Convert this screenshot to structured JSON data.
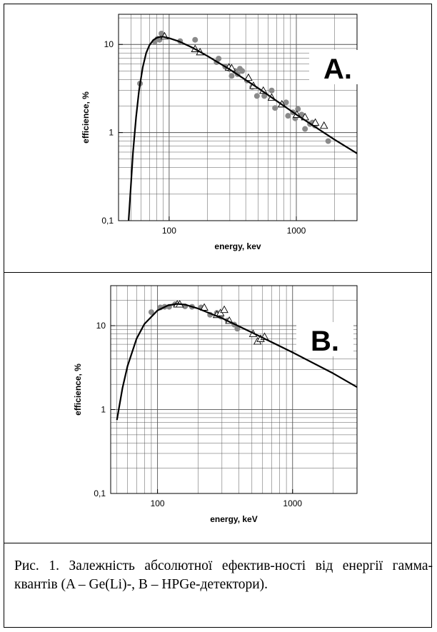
{
  "chart_data": [
    {
      "type": "scatter",
      "title": "",
      "panel_label": "A.",
      "xlabel": "energy, kev",
      "ylabel": "efficience, %",
      "x_scale": "log",
      "y_scale": "log",
      "xlim": [
        40,
        3000
      ],
      "ylim": [
        0.1,
        22
      ],
      "x_tick_labels": [
        {
          "value": 100,
          "label": "100"
        },
        {
          "value": 1000,
          "label": "1000"
        }
      ],
      "y_tick_labels": [
        {
          "value": 0.1,
          "label": "0,1"
        },
        {
          "value": 1,
          "label": "1"
        },
        {
          "value": 10,
          "label": "10"
        }
      ],
      "grid": true,
      "fit_curve": {
        "x": [
          48,
          50,
          52,
          55,
          58,
          62,
          66,
          70,
          75,
          80,
          85,
          90,
          100,
          120,
          150,
          200,
          300,
          500,
          1000,
          2000,
          3000
        ],
        "y": [
          0.1,
          0.25,
          0.6,
          1.5,
          3.0,
          5.5,
          8.0,
          9.8,
          11.2,
          11.9,
          12.2,
          12.2,
          11.8,
          10.8,
          9.3,
          7.4,
          5.2,
          3.2,
          1.6,
          0.83,
          0.58
        ]
      },
      "series": [
        {
          "marker": "circle",
          "color": "#8a8a8a",
          "x": [
            59,
            77,
            81,
            84,
            87,
            90,
            122,
            160,
            236,
            245,
            276,
            295,
            310,
            330,
            345,
            360,
            375,
            410,
            450,
            490,
            560,
            640,
            680,
            780,
            830,
            860,
            940,
            980,
            1030,
            1100,
            1170,
            1280,
            1340,
            1400,
            1780
          ],
          "y": [
            3.6,
            10.8,
            11.6,
            11.3,
            13.3,
            12.3,
            10.9,
            11.3,
            6.3,
            6.9,
            5.6,
            5.4,
            4.4,
            5.0,
            4.6,
            5.3,
            5.0,
            3.9,
            3.3,
            2.6,
            2.6,
            3.0,
            1.9,
            2.1,
            2.2,
            1.55,
            1.7,
            1.45,
            1.85,
            1.6,
            1.1,
            1.25,
            1.3,
            1.2,
            0.8
          ]
        },
        {
          "marker": "triangle",
          "color": "#ffffff",
          "x": [
            92,
            160,
            175,
            295,
            310,
            420,
            460,
            550,
            640,
            770,
            1010,
            1170,
            1410,
            1650
          ],
          "y": [
            12.4,
            8.9,
            8.2,
            5.5,
            5.4,
            4.2,
            3.4,
            3.0,
            2.5,
            2.1,
            1.6,
            1.5,
            1.3,
            1.2
          ]
        }
      ]
    },
    {
      "type": "scatter",
      "title": "",
      "panel_label": "B.",
      "xlabel": "energy, keV",
      "ylabel": "efficience, %",
      "x_scale": "log",
      "y_scale": "log",
      "xlim": [
        45,
        3000
      ],
      "ylim": [
        0.1,
        30
      ],
      "x_tick_labels": [
        {
          "value": 100,
          "label": "100"
        },
        {
          "value": 1000,
          "label": "1000"
        }
      ],
      "y_tick_labels": [
        {
          "value": 0.1,
          "label": "0,1"
        },
        {
          "value": 1,
          "label": "1"
        },
        {
          "value": 10,
          "label": "10"
        }
      ],
      "grid": true,
      "fit_curve": {
        "x": [
          50,
          55,
          60,
          70,
          80,
          100,
          120,
          140,
          160,
          200,
          300,
          500,
          1000,
          2000,
          3000
        ],
        "y": [
          0.75,
          1.8,
          3.3,
          7.0,
          10.5,
          15.2,
          17.5,
          18.2,
          17.8,
          16.0,
          12.3,
          8.3,
          4.8,
          2.7,
          1.85
        ]
      },
      "series": [
        {
          "marker": "circle",
          "color": "#8a8a8a",
          "x": [
            90,
            105,
            113,
            122,
            135,
            160,
            180,
            210,
            245,
            275,
            295,
            330,
            370,
            390
          ],
          "y": [
            14.5,
            16.5,
            16.8,
            16.8,
            18.0,
            17.0,
            16.8,
            16.5,
            13.5,
            14.2,
            12.8,
            11.5,
            10.3,
            9.2
          ]
        },
        {
          "marker": "triangle",
          "color": "#ffffff",
          "x": [
            140,
            146,
            222,
            275,
            292,
            312,
            340,
            510,
            550,
            580,
            620
          ],
          "y": [
            18.0,
            18.0,
            16.5,
            13.5,
            14.2,
            15.5,
            11.5,
            8.0,
            6.5,
            7.0,
            7.4
          ]
        }
      ]
    }
  ],
  "caption": {
    "text": "Рис. 1. Залежність абсолютної ефектив-ності від енергії гамма-квантів (A – Ge(Li)-, B – HPGe-детектори)."
  }
}
